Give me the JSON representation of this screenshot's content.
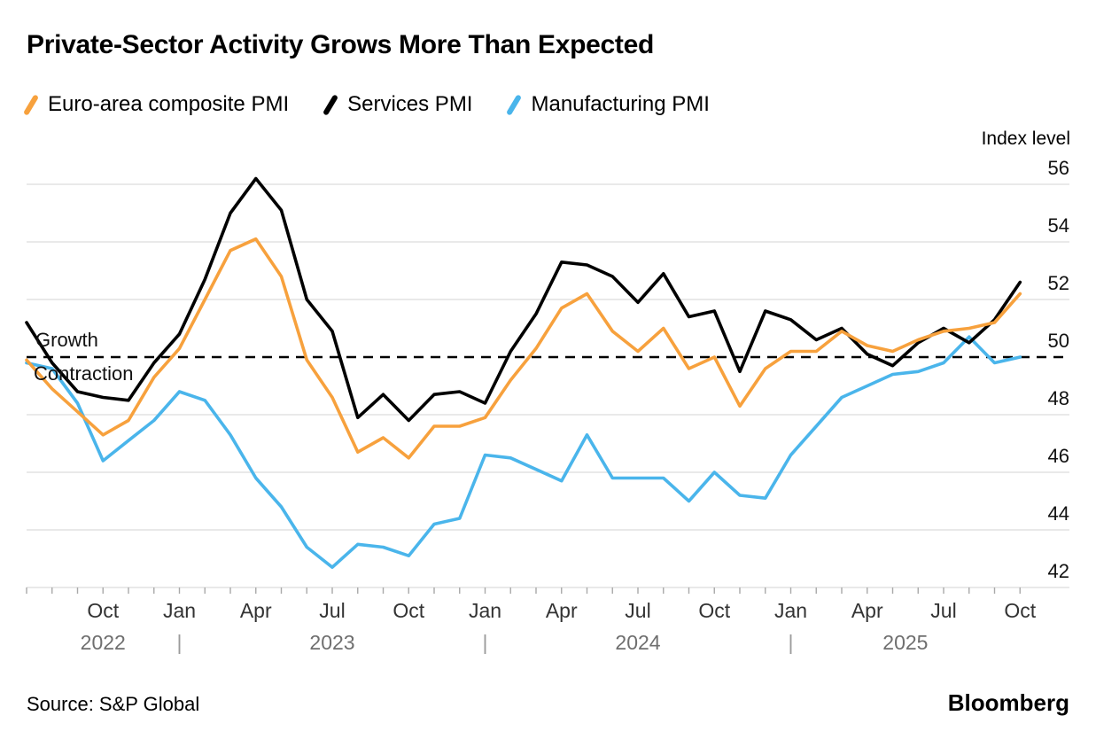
{
  "header": {
    "title": "Private-Sector Activity Grows More Than Expected"
  },
  "legend": [
    {
      "id": "composite",
      "label": "Euro-area composite PMI",
      "color": "#F7A13D"
    },
    {
      "id": "services",
      "label": "Services PMI",
      "color": "#000000"
    },
    {
      "id": "manufacturing",
      "label": "Manufacturing PMI",
      "color": "#4AB5EB"
    }
  ],
  "axis": {
    "y_title": "Index level"
  },
  "annotations": {
    "growth": "Growth",
    "contraction": "Contraction"
  },
  "footer": {
    "source": "Source: S&P Global",
    "brand": "Bloomberg"
  },
  "chart_data": {
    "type": "line",
    "title": "Private-Sector Activity Grows More Than Expected",
    "xlabel": "",
    "ylabel": "Index level",
    "ylim": [
      42,
      56
    ],
    "y_ticks": [
      56,
      54,
      52,
      50,
      48,
      46,
      44,
      42
    ],
    "threshold": 50,
    "grid": true,
    "legend_position": "top",
    "x": [
      "Jul 2022",
      "Aug 2022",
      "Sep 2022",
      "Oct 2022",
      "Nov 2022",
      "Dec 2022",
      "Jan 2023",
      "Feb 2023",
      "Mar 2023",
      "Apr 2023",
      "May 2023",
      "Jun 2023",
      "Jul 2023",
      "Aug 2023",
      "Sep 2023",
      "Oct 2023",
      "Nov 2023",
      "Dec 2023",
      "Jan 2024",
      "Feb 2024",
      "Mar 2024",
      "Apr 2024",
      "May 2024",
      "Jun 2024",
      "Jul 2024",
      "Aug 2024",
      "Sep 2024",
      "Oct 2024",
      "Nov 2024",
      "Dec 2024",
      "Jan 2025",
      "Feb 2025",
      "Mar 2025",
      "Apr 2025",
      "May 2025",
      "Jun 2025",
      "Jul 2025",
      "Aug 2025",
      "Sep 2025",
      "Oct 2025"
    ],
    "x_tick_labels": [
      {
        "index": 3,
        "label": "Oct"
      },
      {
        "index": 6,
        "label": "Jan"
      },
      {
        "index": 9,
        "label": "Apr"
      },
      {
        "index": 12,
        "label": "Jul"
      },
      {
        "index": 15,
        "label": "Oct"
      },
      {
        "index": 18,
        "label": "Jan"
      },
      {
        "index": 21,
        "label": "Apr"
      },
      {
        "index": 24,
        "label": "Jul"
      },
      {
        "index": 27,
        "label": "Oct"
      },
      {
        "index": 30,
        "label": "Jan"
      },
      {
        "index": 33,
        "label": "Apr"
      },
      {
        "index": 36,
        "label": "Jul"
      },
      {
        "index": 39,
        "label": "Oct"
      }
    ],
    "years": [
      {
        "label": "2022",
        "from": 0,
        "to": 6
      },
      {
        "label": "2023",
        "from": 6,
        "to": 18
      },
      {
        "label": "2024",
        "from": 18,
        "to": 30
      },
      {
        "label": "2025",
        "from": 30,
        "to": 39
      }
    ],
    "year_separator": "|",
    "year_separator_indices": [
      6,
      18,
      30
    ],
    "series": [
      {
        "id": "composite",
        "name": "Euro-area composite PMI",
        "color": "#F7A13D",
        "values": [
          49.9,
          48.9,
          48.1,
          47.3,
          47.8,
          49.3,
          50.3,
          52.0,
          53.7,
          54.1,
          52.8,
          49.9,
          48.6,
          46.7,
          47.2,
          46.5,
          47.6,
          47.6,
          47.9,
          49.2,
          50.3,
          51.7,
          52.2,
          50.9,
          50.2,
          51.0,
          49.6,
          50.0,
          48.3,
          49.6,
          50.2,
          50.2,
          50.9,
          50.4,
          50.2,
          50.6,
          50.9,
          51.0,
          51.2,
          52.2
        ]
      },
      {
        "id": "services",
        "name": "Services PMI",
        "color": "#000000",
        "values": [
          51.2,
          49.8,
          48.8,
          48.6,
          48.5,
          49.8,
          50.8,
          52.7,
          55.0,
          56.2,
          55.1,
          52.0,
          50.9,
          47.9,
          48.7,
          47.8,
          48.7,
          48.8,
          48.4,
          50.2,
          51.5,
          53.3,
          53.2,
          52.8,
          51.9,
          52.9,
          51.4,
          51.6,
          49.5,
          51.6,
          51.3,
          50.6,
          51.0,
          50.1,
          49.7,
          50.5,
          51.0,
          50.5,
          51.3,
          52.6
        ]
      },
      {
        "id": "manufacturing",
        "name": "Manufacturing PMI",
        "color": "#4AB5EB",
        "values": [
          49.8,
          49.6,
          48.4,
          46.4,
          47.1,
          47.8,
          48.8,
          48.5,
          47.3,
          45.8,
          44.8,
          43.4,
          42.7,
          43.5,
          43.4,
          43.1,
          44.2,
          44.4,
          46.6,
          46.5,
          46.1,
          45.7,
          47.3,
          45.8,
          45.8,
          45.8,
          45.0,
          46.0,
          45.2,
          45.1,
          46.6,
          47.6,
          48.6,
          49.0,
          49.4,
          49.5,
          49.8,
          50.7,
          49.8,
          50.0
        ]
      }
    ]
  }
}
